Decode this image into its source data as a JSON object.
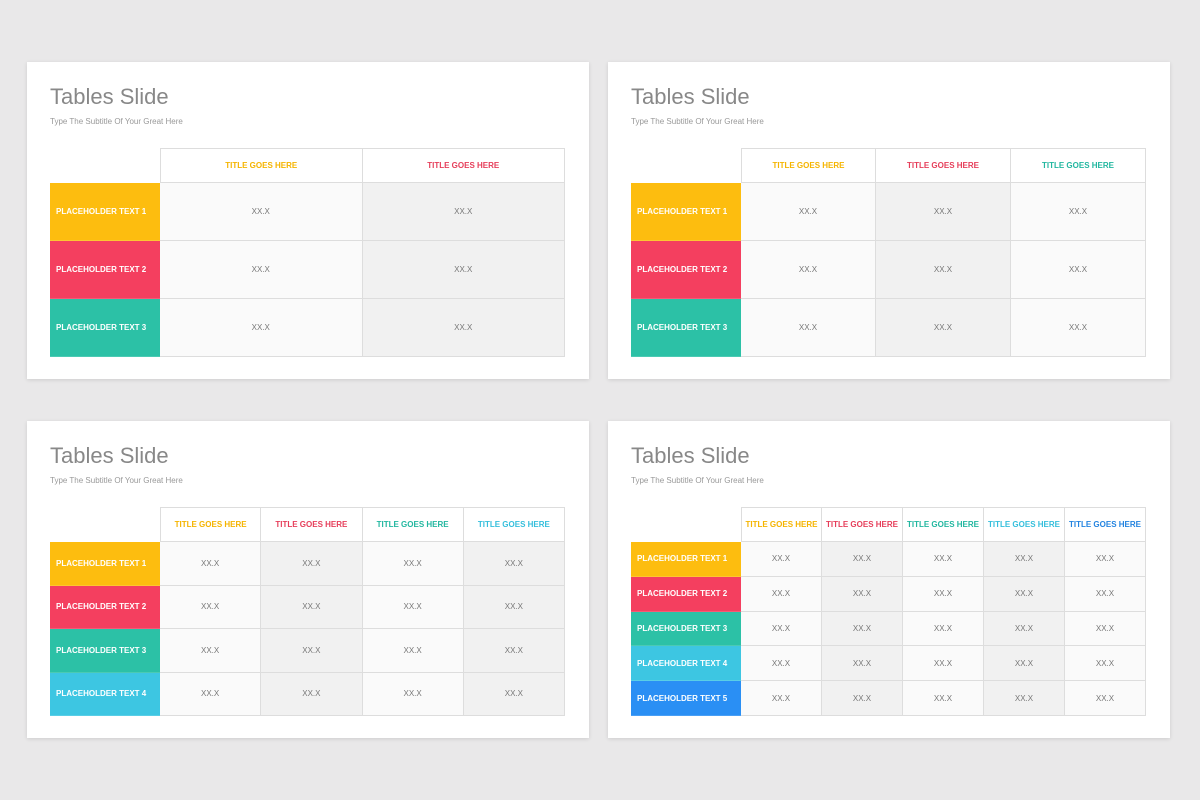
{
  "slides": [
    {
      "title": "Tables Slide",
      "subtitle": "Type The Subtitle Of Your Great Here",
      "columns": [
        "TITLE GOES HERE",
        "TITLE GOES HERE"
      ],
      "rows": [
        {
          "label": "PLACEHOLDER TEXT 1",
          "cells": [
            "XX.X",
            "XX.X"
          ]
        },
        {
          "label": "PLACEHOLDER TEXT 2",
          "cells": [
            "XX.X",
            "XX.X"
          ]
        },
        {
          "label": "PLACEHOLDER TEXT 3",
          "cells": [
            "XX.X",
            "XX.X"
          ]
        }
      ]
    },
    {
      "title": "Tables Slide",
      "subtitle": "Type The Subtitle Of Your Great Here",
      "columns": [
        "TITLE GOES HERE",
        "TITLE GOES HERE",
        "TITLE GOES HERE"
      ],
      "rows": [
        {
          "label": "PLACEHOLDER TEXT 1",
          "cells": [
            "XX.X",
            "XX.X",
            "XX.X"
          ]
        },
        {
          "label": "PLACEHOLDER TEXT 2",
          "cells": [
            "XX.X",
            "XX.X",
            "XX.X"
          ]
        },
        {
          "label": "PLACEHOLDER TEXT 3",
          "cells": [
            "XX.X",
            "XX.X",
            "XX.X"
          ]
        }
      ]
    },
    {
      "title": "Tables Slide",
      "subtitle": "Type The Subtitle Of Your Great Here",
      "columns": [
        "TITLE GOES HERE",
        "TITLE GOES HERE",
        "TITLE GOES HERE",
        "TITLE GOES HERE"
      ],
      "rows": [
        {
          "label": "PLACEHOLDER TEXT 1",
          "cells": [
            "XX.X",
            "XX.X",
            "XX.X",
            "XX.X"
          ]
        },
        {
          "label": "PLACEHOLDER TEXT 2",
          "cells": [
            "XX.X",
            "XX.X",
            "XX.X",
            "XX.X"
          ]
        },
        {
          "label": "PLACEHOLDER TEXT 3",
          "cells": [
            "XX.X",
            "XX.X",
            "XX.X",
            "XX.X"
          ]
        },
        {
          "label": "PLACEHOLDER TEXT 4",
          "cells": [
            "XX.X",
            "XX.X",
            "XX.X",
            "XX.X"
          ]
        }
      ]
    },
    {
      "title": "Tables Slide",
      "subtitle": "Type The Subtitle Of Your Great Here",
      "columns": [
        "TITLE GOES HERE",
        "TITLE GOES HERE",
        "TITLE GOES HERE",
        "TITLE GOES HERE",
        "TITLE GOES HERE"
      ],
      "rows": [
        {
          "label": "PLACEHOLDER TEXT 1",
          "cells": [
            "XX.X",
            "XX.X",
            "XX.X",
            "XX.X",
            "XX.X"
          ]
        },
        {
          "label": "PLACEHOLDER TEXT 2",
          "cells": [
            "XX.X",
            "XX.X",
            "XX.X",
            "XX.X",
            "XX.X"
          ]
        },
        {
          "label": "PLACEHOLDER TEXT 3",
          "cells": [
            "XX.X",
            "XX.X",
            "XX.X",
            "XX.X",
            "XX.X"
          ]
        },
        {
          "label": "PLACEHOLDER TEXT 4",
          "cells": [
            "XX.X",
            "XX.X",
            "XX.X",
            "XX.X",
            "XX.X"
          ]
        },
        {
          "label": "PLACEHOLDER TEXT 5",
          "cells": [
            "XX.X",
            "XX.X",
            "XX.X",
            "XX.X",
            "XX.X"
          ]
        }
      ]
    }
  ]
}
